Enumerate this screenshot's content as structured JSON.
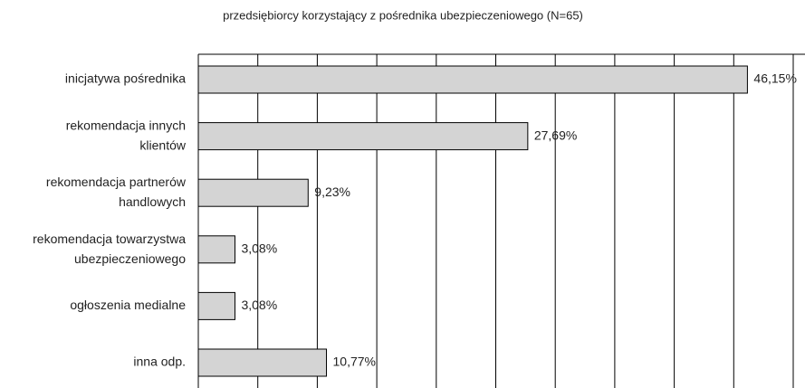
{
  "chart_data": {
    "type": "bar",
    "orientation": "horizontal",
    "title": "przedsiębiorcy korzystający z pośrednika ubezpieczeniowego (N=65)",
    "categories": [
      "inicjatywa pośrednika",
      "rekomendacja innych\nklientów",
      "rekomendacja partnerów\nhandlowych",
      "rekomendacja towarzystwa\nubezpieczeniowego",
      "ogłoszenia medialne",
      "inna odp."
    ],
    "values": [
      46.15,
      27.69,
      9.23,
      3.08,
      3.08,
      10.77
    ],
    "value_labels": [
      "46,15%",
      "27,69%",
      "9,23%",
      "3,08%",
      "3,08%",
      "10,77%"
    ],
    "color": "#d4d4d4",
    "xlim": [
      0,
      50
    ],
    "xticks": [
      0,
      5,
      10,
      15,
      20,
      25,
      30,
      35,
      40,
      45,
      50
    ],
    "grid": true
  }
}
